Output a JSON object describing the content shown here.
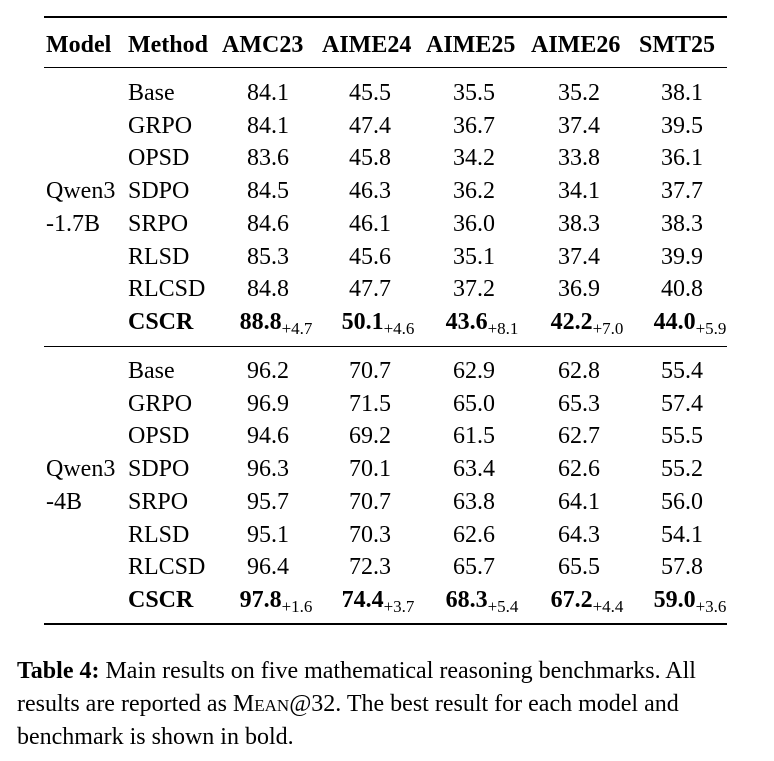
{
  "table": {
    "headers": [
      "Model",
      "Method",
      "AMC23",
      "AIME24",
      "AIME25",
      "AIME26",
      "SMT25"
    ],
    "groups": [
      {
        "model_line1": "Qwen3",
        "model_line2": "-1.7B",
        "rows": [
          {
            "method": "Base",
            "values": [
              "84.1",
              "45.5",
              "35.5",
              "35.2",
              "38.1"
            ]
          },
          {
            "method": "GRPO",
            "values": [
              "84.1",
              "47.4",
              "36.7",
              "37.4",
              "39.5"
            ]
          },
          {
            "method": "OPSD",
            "values": [
              "83.6",
              "45.8",
              "34.2",
              "33.8",
              "36.1"
            ]
          },
          {
            "method": "SDPO",
            "values": [
              "84.5",
              "46.3",
              "36.2",
              "34.1",
              "37.7"
            ]
          },
          {
            "method": "SRPO",
            "values": [
              "84.6",
              "46.1",
              "36.0",
              "38.3",
              "38.3"
            ]
          },
          {
            "method": "RLSD",
            "values": [
              "85.3",
              "45.6",
              "35.1",
              "37.4",
              "39.9"
            ]
          },
          {
            "method": "RLCSD",
            "values": [
              "84.8",
              "47.7",
              "37.2",
              "36.9",
              "40.8"
            ]
          }
        ],
        "best": {
          "method": "CSCR",
          "values": [
            "88.8",
            "50.1",
            "43.6",
            "42.2",
            "44.0"
          ],
          "deltas": [
            "+4.7",
            "+4.6",
            "+8.1",
            "+7.0",
            "+5.9"
          ]
        }
      },
      {
        "model_line1": "Qwen3",
        "model_line2": "-4B",
        "rows": [
          {
            "method": "Base",
            "values": [
              "96.2",
              "70.7",
              "62.9",
              "62.8",
              "55.4"
            ]
          },
          {
            "method": "GRPO",
            "values": [
              "96.9",
              "71.5",
              "65.0",
              "65.3",
              "57.4"
            ]
          },
          {
            "method": "OPSD",
            "values": [
              "94.6",
              "69.2",
              "61.5",
              "62.7",
              "55.5"
            ]
          },
          {
            "method": "SDPO",
            "values": [
              "96.3",
              "70.1",
              "63.4",
              "62.6",
              "55.2"
            ]
          },
          {
            "method": "SRPO",
            "values": [
              "95.7",
              "70.7",
              "63.8",
              "64.1",
              "56.0"
            ]
          },
          {
            "method": "RLSD",
            "values": [
              "95.1",
              "70.3",
              "62.6",
              "64.3",
              "54.1"
            ]
          },
          {
            "method": "RLCSD",
            "values": [
              "96.4",
              "72.3",
              "65.7",
              "65.5",
              "57.8"
            ]
          }
        ],
        "best": {
          "method": "CSCR",
          "values": [
            "97.8",
            "74.4",
            "68.3",
            "67.2",
            "59.0"
          ],
          "deltas": [
            "+1.6",
            "+3.7",
            "+5.4",
            "+4.4",
            "+3.6"
          ]
        }
      }
    ]
  },
  "caption": {
    "label": "Table 4:",
    "text_before_metric": " Main results on five mathematical reasoning benchmarks. All results are reported as ",
    "metric_name": "Mean",
    "metric_suffix": "@32",
    "text_after_metric": ". The best result for each model and benchmark is shown in bold."
  }
}
